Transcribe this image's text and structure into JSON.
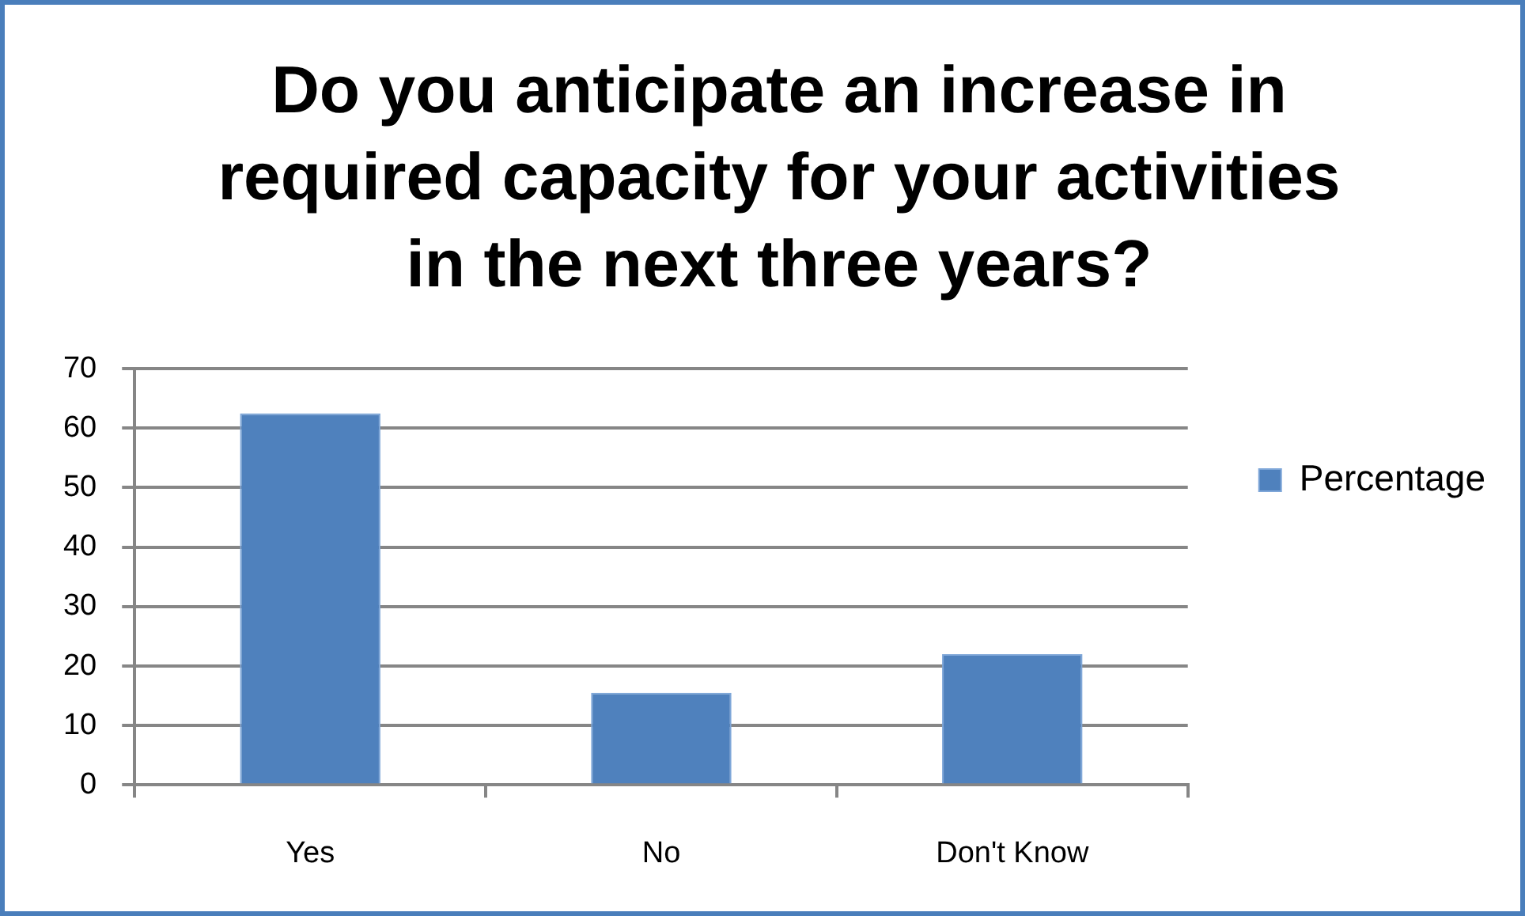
{
  "chart_data": {
    "type": "bar",
    "title": "Do you anticipate an increase in\nrequired capacity for your activities\nin the next three years?",
    "categories": [
      "Yes",
      "No",
      "Don't Know"
    ],
    "series": [
      {
        "name": "Percentage",
        "color": "#4f81bd",
        "values": [
          62.5,
          15.5,
          22
        ]
      }
    ],
    "ylim": [
      0,
      70
    ],
    "yticks": [
      0,
      10,
      20,
      30,
      40,
      50,
      60,
      70
    ],
    "grid": "y",
    "legend": "right"
  }
}
